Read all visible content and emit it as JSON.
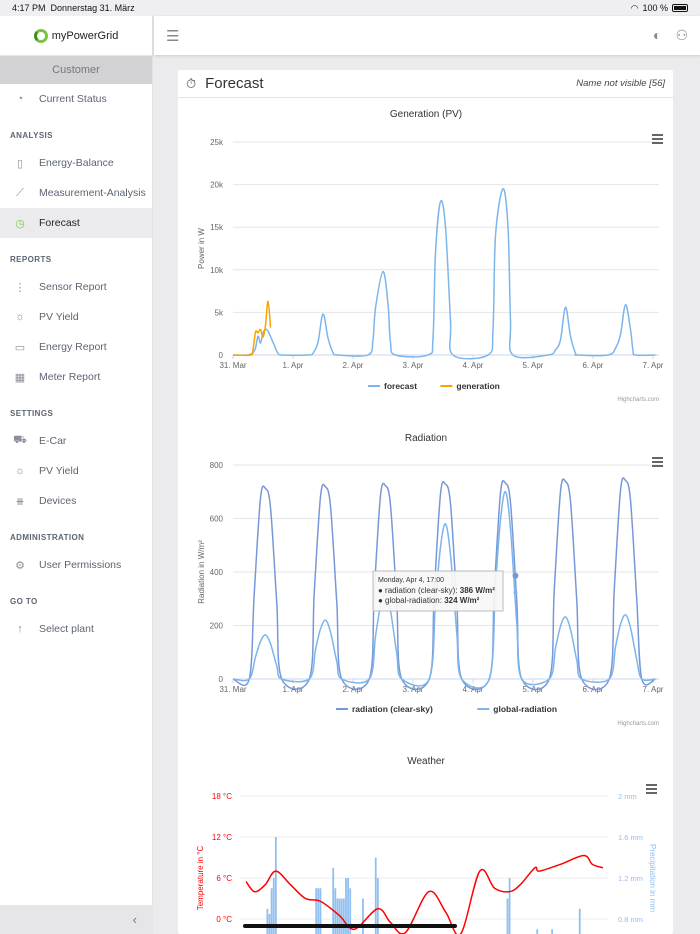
{
  "status_bar": {
    "time": "4:17 PM",
    "date": "Donnerstag 31. März",
    "battery": "100 %"
  },
  "brand": "myPowerGrid",
  "sidebar": {
    "customer": "Customer",
    "top_items": [
      {
        "label": "Current Status",
        "icon": "gauge-icon"
      }
    ],
    "sections": [
      {
        "title": "ANALYSIS",
        "items": [
          {
            "label": "Energy-Balance",
            "icon": "bar-chart-icon"
          },
          {
            "label": "Measurement-Analysis",
            "icon": "line-chart-icon"
          },
          {
            "label": "Forecast",
            "icon": "stopwatch-icon",
            "active": true
          }
        ]
      },
      {
        "title": "REPORTS",
        "items": [
          {
            "label": "Sensor Report",
            "icon": "sensor-icon"
          },
          {
            "label": "PV Yield",
            "icon": "sun-icon"
          },
          {
            "label": "Energy Report",
            "icon": "folder-icon"
          },
          {
            "label": "Meter Report",
            "icon": "table-icon"
          }
        ]
      },
      {
        "title": "SETTINGS",
        "items": [
          {
            "label": "E-Car",
            "icon": "car-icon"
          },
          {
            "label": "PV Yield",
            "icon": "sun-icon"
          },
          {
            "label": "Devices",
            "icon": "devices-icon"
          }
        ]
      },
      {
        "title": "ADMINISTRATION",
        "items": [
          {
            "label": "User Permissions",
            "icon": "gear-icon"
          }
        ]
      },
      {
        "title": "GO TO",
        "items": [
          {
            "label": "Select plant",
            "icon": "arrow-up-icon"
          }
        ]
      }
    ],
    "collapse": "‹"
  },
  "page": {
    "title": "Forecast",
    "user": "Name not visible [56]"
  },
  "colors": {
    "forecast": "#7cb5ec",
    "generation": "#f7a300",
    "clear_sky": "#7798d8",
    "global": "#7cb5ec",
    "temperature": "#ff0000",
    "precipitation": "#90bff0"
  },
  "chart_data": [
    {
      "type": "line",
      "title": "Generation (PV)",
      "ylabel": "Power in W",
      "ylim": [
        0,
        25000
      ],
      "yticks": [
        "0",
        "5k",
        "10k",
        "15k",
        "20k",
        "25k"
      ],
      "xticks": [
        "31. Mar",
        "1. Apr",
        "2. Apr",
        "3. Apr",
        "4. Apr",
        "5. Apr",
        "6. Apr",
        "7. Apr"
      ],
      "x_unit": "hours since 31. Mar 00:00",
      "credits": "Highcharts.com",
      "series": [
        {
          "name": "forecast",
          "color": "#7cb5ec",
          "points": [
            [
              0,
              0
            ],
            [
              6,
              0
            ],
            [
              8,
              300
            ],
            [
              9,
              800
            ],
            [
              10,
              2200
            ],
            [
              11,
              1400
            ],
            [
              12,
              2600
            ],
            [
              13,
              3000
            ],
            [
              14,
              2800
            ],
            [
              16,
              1500
            ],
            [
              18,
              200
            ],
            [
              20,
              0
            ],
            [
              30,
              0
            ],
            [
              32,
              200
            ],
            [
              34,
              1500
            ],
            [
              36,
              4800
            ],
            [
              38,
              2000
            ],
            [
              40,
              300
            ],
            [
              42,
              0
            ],
            [
              54,
              0
            ],
            [
              56,
              1800
            ],
            [
              57,
              5500
            ],
            [
              60,
              9800
            ],
            [
              62,
              6000
            ],
            [
              63,
              1500
            ],
            [
              65,
              0
            ],
            [
              78,
              0
            ],
            [
              80,
              2000
            ],
            [
              81,
              12000
            ],
            [
              83,
              18000
            ],
            [
              85,
              15000
            ],
            [
              87,
              4000
            ],
            [
              88,
              0
            ],
            [
              102,
              0
            ],
            [
              104,
              3000
            ],
            [
              105,
              14000
            ],
            [
              108,
              19500
            ],
            [
              110,
              15000
            ],
            [
              111,
              4000
            ],
            [
              112,
              0
            ],
            [
              126,
              0
            ],
            [
              129,
              600
            ],
            [
              131,
              1800
            ],
            [
              133,
              5600
            ],
            [
              135,
              2200
            ],
            [
              137,
              200
            ],
            [
              138,
              0
            ],
            [
              150,
              0
            ],
            [
              153,
              800
            ],
            [
              155,
              2400
            ],
            [
              157,
              5900
            ],
            [
              159,
              3000
            ],
            [
              160,
              500
            ],
            [
              161,
              0
            ],
            [
              169,
              0
            ]
          ]
        },
        {
          "name": "generation",
          "color": "#f7a300",
          "points": [
            [
              0,
              0
            ],
            [
              7,
              0
            ],
            [
              8,
              600
            ],
            [
              9,
              2700
            ],
            [
              10,
              2600
            ],
            [
              11,
              3000
            ],
            [
              12,
              2100
            ],
            [
              13,
              3500
            ],
            [
              14,
              6300
            ],
            [
              15,
              3200
            ]
          ]
        }
      ]
    },
    {
      "type": "line",
      "title": "Radiation",
      "ylabel": "Radiation in W/m²",
      "ylim": [
        0,
        800
      ],
      "yticks": [
        "0",
        "200",
        "400",
        "600",
        "800"
      ],
      "xticks": [
        "31. Mar",
        "1. Apr",
        "2. Apr",
        "3. Apr",
        "4. Apr",
        "5. Apr",
        "6. Apr",
        "7. Apr"
      ],
      "credits": "Highcharts.com",
      "tooltip": {
        "header": "Monday, Apr 4, 17:00",
        "rows": [
          {
            "label": "radiation (clear-sky): ",
            "value": "386 W/m²"
          },
          {
            "label": "global-radiation: ",
            "value": "324 W/m²"
          }
        ]
      },
      "series": [
        {
          "name": "radiation (clear-sky)",
          "color": "#7798d8",
          "peaks": [
            712,
            718,
            722,
            728,
            732,
            738,
            742
          ]
        },
        {
          "name": "global-radiation",
          "color": "#7cb5ec",
          "peaks": [
            165,
            220,
            320,
            580,
            700,
            232,
            240
          ]
        }
      ]
    },
    {
      "type": "combo",
      "title": "Weather",
      "ylabel_left": "Temperature in °C",
      "ylabel_right": "Precipitation in mm",
      "yticks_left": [
        "0 °C",
        "6 °C",
        "12 °C",
        "18 °C"
      ],
      "yticks_right": [
        "0.8 mm",
        "1.2 mm",
        "1.6 mm",
        "2 mm"
      ],
      "temperature": [
        [
          0,
          5.5
        ],
        [
          4,
          4
        ],
        [
          9,
          5
        ],
        [
          14,
          7
        ],
        [
          21,
          5
        ],
        [
          28,
          3
        ],
        [
          35,
          2.6
        ],
        [
          44,
          0.5
        ],
        [
          51,
          -1.5
        ],
        [
          62,
          1.5
        ],
        [
          68,
          -0.5
        ],
        [
          75,
          -2
        ],
        [
          86,
          4
        ],
        [
          94,
          1
        ],
        [
          101,
          -3
        ],
        [
          110,
          7
        ],
        [
          117,
          4.5
        ],
        [
          124,
          4
        ],
        [
          129,
          5
        ],
        [
          136,
          7.5
        ],
        [
          138,
          7
        ],
        [
          148,
          8
        ],
        [
          159,
          9.3
        ],
        [
          163,
          8
        ],
        [
          168,
          7.5
        ]
      ],
      "precipitation": [
        [
          10,
          0.9
        ],
        [
          11,
          0.85
        ],
        [
          12,
          1.1
        ],
        [
          13,
          1.2
        ],
        [
          14,
          1.6
        ],
        [
          33,
          1.1
        ],
        [
          34,
          1.1
        ],
        [
          35,
          1.1
        ],
        [
          41,
          1.3
        ],
        [
          42,
          1.1
        ],
        [
          43,
          1.0
        ],
        [
          44,
          1.0
        ],
        [
          45,
          1.0
        ],
        [
          46,
          1.0
        ],
        [
          47,
          1.2
        ],
        [
          48,
          1.2
        ],
        [
          49,
          1.1
        ],
        [
          55,
          1.0
        ],
        [
          61,
          1.4
        ],
        [
          62,
          1.2
        ],
        [
          123,
          1.0
        ],
        [
          124,
          1.2
        ],
        [
          137,
          0.7
        ],
        [
          144,
          0.7
        ],
        [
          157,
          0.9
        ]
      ]
    }
  ]
}
